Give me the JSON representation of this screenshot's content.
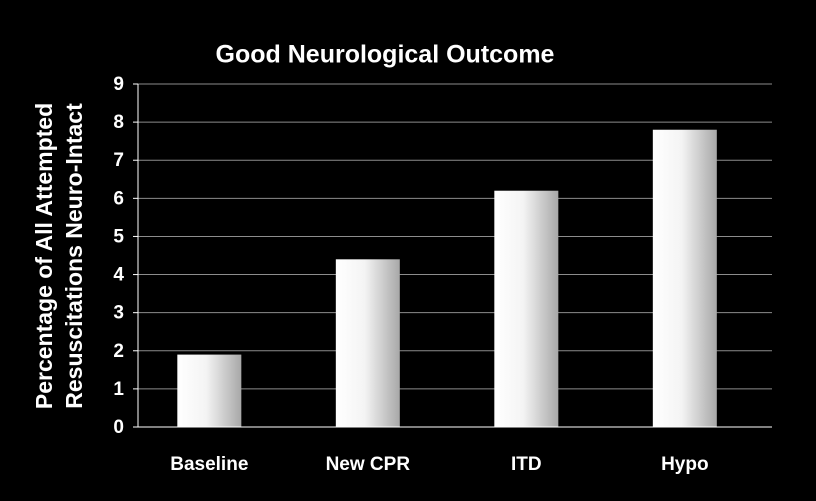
{
  "chart_data": {
    "type": "bar",
    "title": "Good Neurological Outcome",
    "ylabel": [
      "Percentage of All Attempted",
      "Resuscitations Neuro-Intact"
    ],
    "categories": [
      "Baseline",
      "New CPR",
      "ITD",
      "Hypo"
    ],
    "values": [
      1.9,
      4.4,
      6.2,
      7.8
    ],
    "color": "#ffffff",
    "ylim": [
      0,
      9
    ],
    "yticks": [
      0,
      1,
      2,
      3,
      4,
      5,
      6,
      7,
      8,
      9
    ],
    "grid": true
  }
}
